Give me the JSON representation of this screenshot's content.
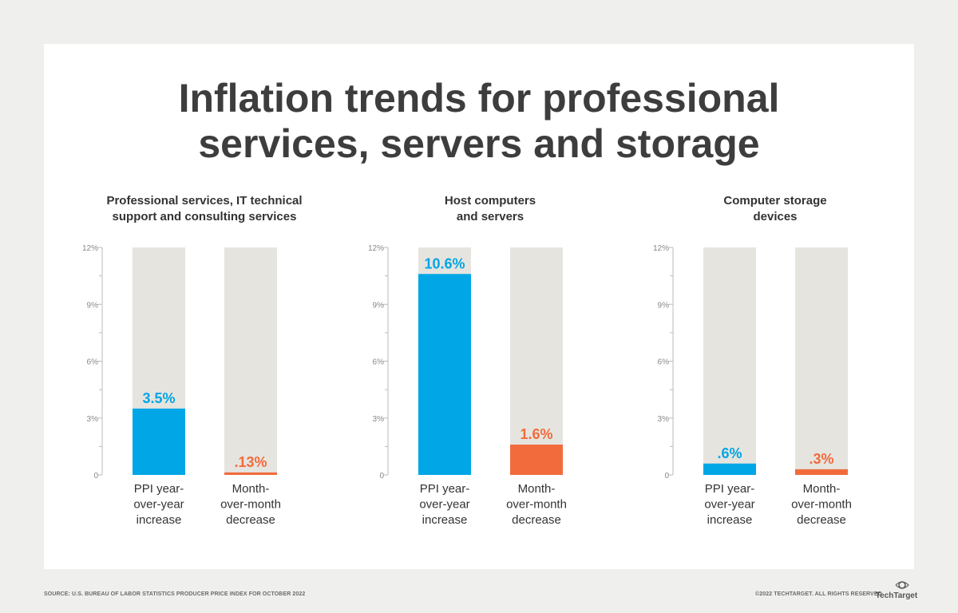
{
  "title": "Inflation trends for professional\nservices, servers and storage",
  "chart_data": [
    {
      "type": "bar",
      "title": "Professional services, IT technical\nsupport and consulting services",
      "categories": [
        "PPI year-\nover-year\nincrease",
        "Month-\nover-month\ndecrease"
      ],
      "values": [
        3.5,
        0.13
      ],
      "value_labels": [
        "3.5%",
        ".13%"
      ],
      "colors": [
        "#00a6e6",
        "#f26b3d"
      ],
      "track_color": "#e6e4df",
      "ylim": [
        0,
        12
      ],
      "yticks": [
        0,
        {
          "value": 3,
          "label": "3%"
        },
        {
          "value": 6,
          "label": "6%"
        },
        {
          "value": 9,
          "label": "9%"
        },
        {
          "value": 12,
          "label": "12%"
        }
      ],
      "minor_yticks": [
        1.5,
        4.5,
        7.5,
        10.5
      ]
    },
    {
      "type": "bar",
      "title": "Host computers\nand servers",
      "categories": [
        "PPI year-\nover-year\nincrease",
        "Month-\nover-month\ndecrease"
      ],
      "values": [
        10.6,
        1.6
      ],
      "value_labels": [
        "10.6%",
        "1.6%"
      ],
      "colors": [
        "#00a6e6",
        "#f26b3d"
      ],
      "track_color": "#e6e4df",
      "ylim": [
        0,
        12
      ],
      "yticks": [
        0,
        {
          "value": 3,
          "label": "3%"
        },
        {
          "value": 6,
          "label": "6%"
        },
        {
          "value": 9,
          "label": "9%"
        },
        {
          "value": 12,
          "label": "12%"
        }
      ],
      "minor_yticks": [
        1.5,
        4.5,
        7.5,
        10.5
      ]
    },
    {
      "type": "bar",
      "title": "Computer storage\ndevices",
      "categories": [
        "PPI year-\nover-year\nincrease",
        "Month-\nover-month\ndecrease"
      ],
      "values": [
        0.6,
        0.3
      ],
      "value_labels": [
        ".6%",
        ".3%"
      ],
      "colors": [
        "#00a6e6",
        "#f26b3d"
      ],
      "track_color": "#e6e4df",
      "ylim": [
        0,
        12
      ],
      "yticks": [
        0,
        {
          "value": 3,
          "label": "3%"
        },
        {
          "value": 6,
          "label": "6%"
        },
        {
          "value": 9,
          "label": "9%"
        },
        {
          "value": 12,
          "label": "12%"
        }
      ],
      "minor_yticks": [
        1.5,
        4.5,
        7.5,
        10.5
      ]
    }
  ],
  "source": "SOURCE: U.S. BUREAU OF LABOR STATISTICS PRODUCER PRICE INDEX FOR OCTOBER 2022",
  "copyright": "©2022 TECHTARGET. ALL RIGHTS RESERVED",
  "brand": "TechTarget"
}
